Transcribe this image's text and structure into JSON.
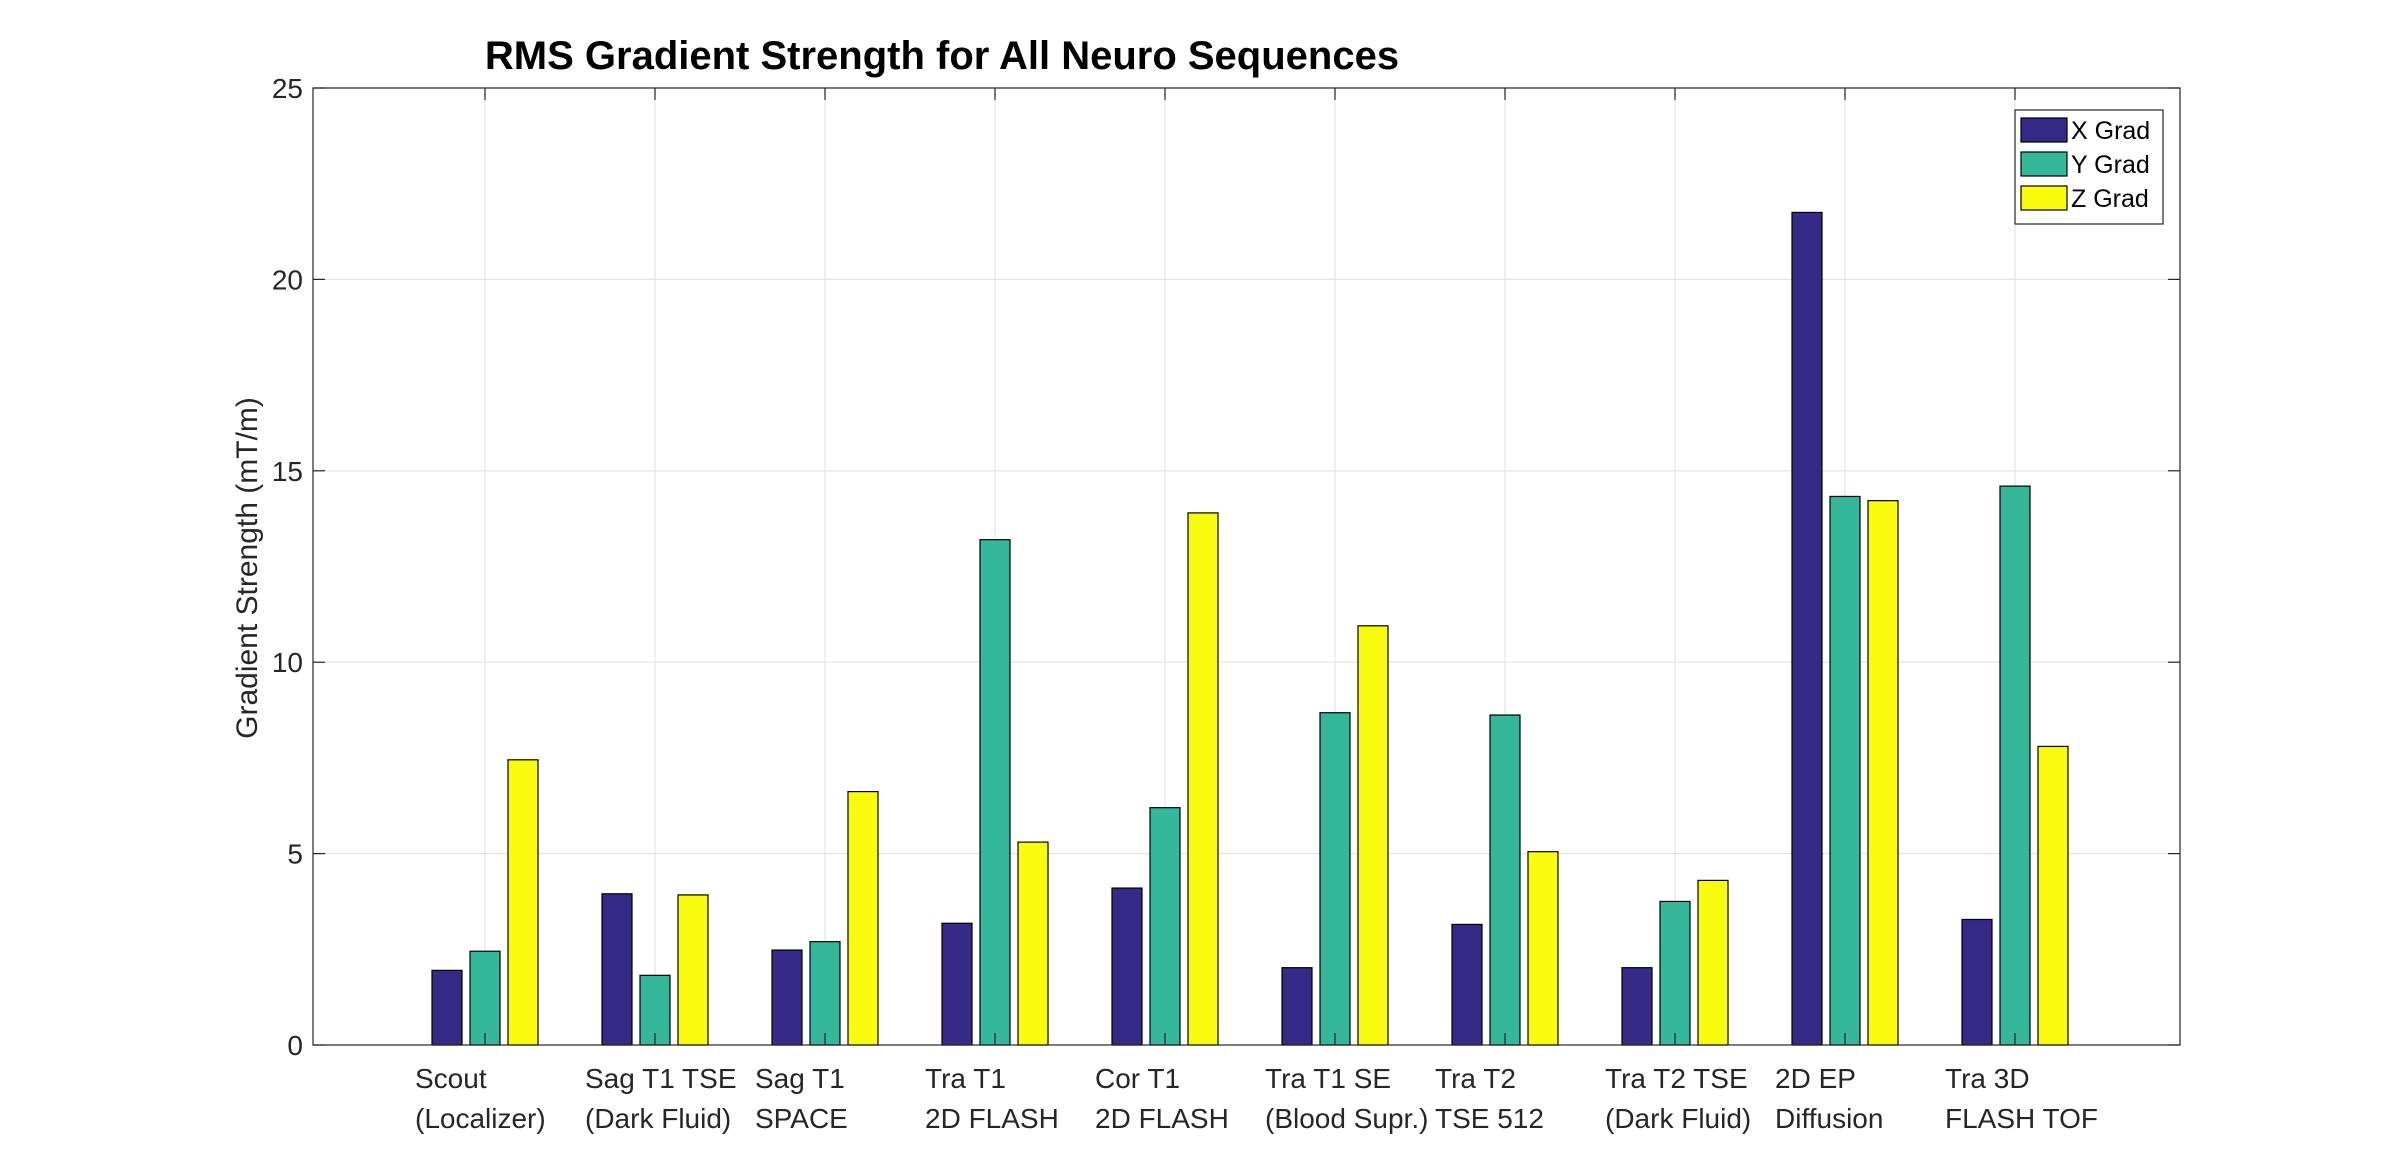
{
  "chart_data": {
    "type": "bar",
    "title": "RMS Gradient Strength for All Neuro Sequences",
    "xlabel": "",
    "ylabel": "Gradient Strength (mT/m)",
    "ylim": [
      0,
      25
    ],
    "yticks": [
      0,
      5,
      10,
      15,
      20,
      25
    ],
    "grid": true,
    "legend_position": "top-right",
    "categories": [
      [
        "Scout",
        "(Localizer)"
      ],
      [
        "Sag T1 TSE",
        "(Dark Fluid)"
      ],
      [
        "Sag T1",
        "SPACE"
      ],
      [
        "Tra T1",
        "2D FLASH"
      ],
      [
        "Cor T1",
        "2D FLASH"
      ],
      [
        "Tra T1 SE",
        "(Blood Supr.)"
      ],
      [
        "Tra T2",
        "TSE 512"
      ],
      [
        "Tra T2 TSE",
        "(Dark Fluid)"
      ],
      [
        "2D EP",
        "Diffusion"
      ],
      [
        "Tra 3D",
        "FLASH TOF"
      ]
    ],
    "series": [
      {
        "name": "X Grad",
        "color": "#352a87",
        "values": [
          1.95,
          3.95,
          2.48,
          3.18,
          4.1,
          2.02,
          3.15,
          2.02,
          21.75,
          3.28
        ]
      },
      {
        "name": "Y Grad",
        "color": "#35b79a",
        "values": [
          2.45,
          1.82,
          2.7,
          13.2,
          6.2,
          8.68,
          8.62,
          3.75,
          14.33,
          14.6
        ]
      },
      {
        "name": "Z Grad",
        "color": "#f9fb0e",
        "values": [
          7.45,
          3.92,
          6.62,
          5.3,
          13.9,
          10.95,
          5.05,
          4.3,
          14.22,
          7.8
        ]
      }
    ]
  }
}
